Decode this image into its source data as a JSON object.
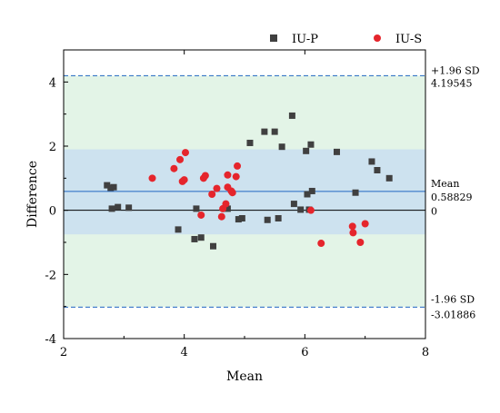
{
  "chart_data": {
    "type": "scatter",
    "title": "",
    "xlabel": "Mean",
    "ylabel": "Difference",
    "xlim": [
      2,
      8
    ],
    "ylim": [
      -4,
      5
    ],
    "xticks": [
      "2",
      "4",
      "6",
      "8"
    ],
    "yticks": [
      "-4",
      "-2",
      "0",
      "2",
      "4"
    ],
    "legend_position": "top",
    "bands": [
      {
        "name": "limits-of-agreement",
        "from": -3.01886,
        "to": 4.19545,
        "color": "#e3f4e7"
      },
      {
        "name": "central-band",
        "from": -0.75,
        "to": 1.9,
        "color": "#cde2ef"
      }
    ],
    "reference_lines": [
      {
        "id": "upper",
        "value": 4.19545,
        "style": "dashed",
        "color": "#2166c2",
        "label_line1": "+1.96 SD",
        "label_line2": "4.19545"
      },
      {
        "id": "mean",
        "value": 0.58829,
        "style": "solid",
        "color": "#2166c2",
        "label_line1": "Mean",
        "label_line2": "0.58829"
      },
      {
        "id": "zero",
        "value": 0,
        "style": "solid",
        "color": "#000000",
        "label_line1": "0",
        "label_line2": ""
      },
      {
        "id": "lower",
        "value": -3.01886,
        "style": "dashed",
        "color": "#2166c2",
        "label_line1": "-1.96 SD",
        "label_line2": "-3.01886"
      }
    ],
    "series": [
      {
        "name": "IU-P",
        "marker": "square",
        "color": "#404040",
        "points": [
          [
            2.72,
            0.78
          ],
          [
            2.78,
            0.7
          ],
          [
            2.83,
            0.72
          ],
          [
            2.8,
            0.05
          ],
          [
            2.9,
            0.1
          ],
          [
            3.08,
            0.08
          ],
          [
            3.9,
            -0.6
          ],
          [
            4.17,
            -0.9
          ],
          [
            4.2,
            0.05
          ],
          [
            4.28,
            -0.85
          ],
          [
            4.48,
            -1.12
          ],
          [
            4.72,
            0.05
          ],
          [
            4.9,
            -0.28
          ],
          [
            4.96,
            -0.25
          ],
          [
            5.09,
            2.1
          ],
          [
            5.33,
            2.45
          ],
          [
            5.38,
            -0.3
          ],
          [
            5.5,
            2.45
          ],
          [
            5.56,
            -0.25
          ],
          [
            5.62,
            1.98
          ],
          [
            5.79,
            2.95
          ],
          [
            5.82,
            0.2
          ],
          [
            5.93,
            0.02
          ],
          [
            6.02,
            1.85
          ],
          [
            6.04,
            0.5
          ],
          [
            6.07,
            0.02
          ],
          [
            6.1,
            2.05
          ],
          [
            6.12,
            0.6
          ],
          [
            6.53,
            1.82
          ],
          [
            6.84,
            0.55
          ],
          [
            7.11,
            1.52
          ],
          [
            7.2,
            1.25
          ],
          [
            7.4,
            1.0
          ]
        ]
      },
      {
        "name": "IU-S",
        "marker": "circle",
        "color": "#e5252c",
        "points": [
          [
            3.47,
            1.0
          ],
          [
            3.83,
            1.3
          ],
          [
            3.93,
            1.58
          ],
          [
            3.97,
            0.9
          ],
          [
            4.0,
            0.95
          ],
          [
            4.02,
            1.8
          ],
          [
            4.28,
            -0.15
          ],
          [
            4.32,
            1.0
          ],
          [
            4.35,
            1.08
          ],
          [
            4.46,
            0.5
          ],
          [
            4.54,
            0.68
          ],
          [
            4.62,
            -0.2
          ],
          [
            4.64,
            0.05
          ],
          [
            4.69,
            0.2
          ],
          [
            4.72,
            0.72
          ],
          [
            4.72,
            1.1
          ],
          [
            4.78,
            0.6
          ],
          [
            4.8,
            0.55
          ],
          [
            4.86,
            1.05
          ],
          [
            4.88,
            1.38
          ],
          [
            6.1,
            0.0
          ],
          [
            6.27,
            -1.03
          ],
          [
            6.79,
            -0.5
          ],
          [
            6.8,
            -0.7
          ],
          [
            6.92,
            -1.0
          ],
          [
            7.0,
            -0.42
          ]
        ]
      }
    ]
  }
}
